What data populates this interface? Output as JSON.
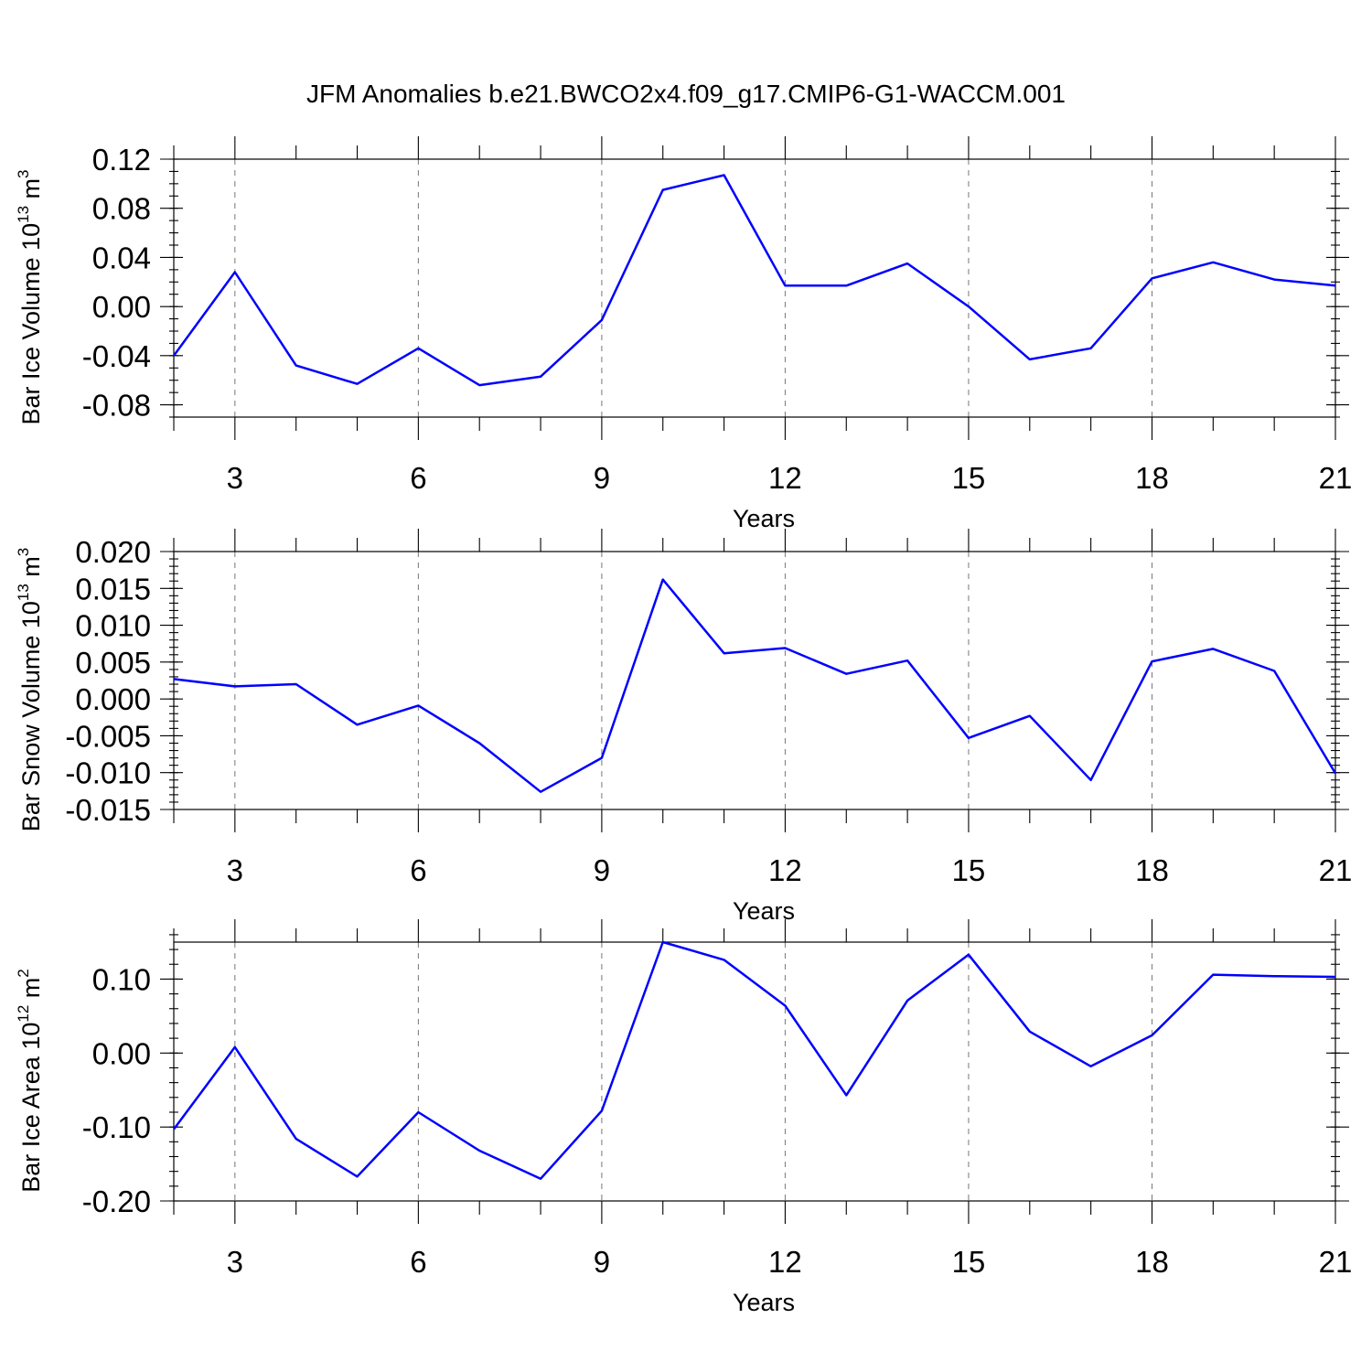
{
  "title": "JFM Anomalies b.e21.BWCO2x4.f09_g17.CMIP6-G1-WACCM.001",
  "colors": {
    "line": "#0000ff",
    "axes": "#000000",
    "grid": "#777777"
  },
  "chart_data": [
    {
      "type": "line",
      "id": "ice-volume",
      "title": "",
      "xlabel": "Years",
      "ylabel": {
        "main": "Bar Ice Volume 10",
        "sup": "13",
        "unit": " m",
        "unit_sup": "3"
      },
      "xlim": [
        2,
        21
      ],
      "xticks": [
        3,
        6,
        9,
        12,
        15,
        18,
        21
      ],
      "xtick_labels": [
        "3",
        "6",
        "9",
        "12",
        "15",
        "18",
        "21"
      ],
      "ylim": [
        -0.09,
        0.12
      ],
      "yticks": [
        -0.08,
        -0.04,
        0.0,
        0.04,
        0.08,
        0.12
      ],
      "ytick_labels": [
        "-0.08",
        "-0.04",
        "0.00",
        "0.04",
        "0.08",
        "0.12"
      ],
      "yminor_step": 0.01,
      "grid": "dashed vertical at major x ticks",
      "x": [
        2,
        3,
        4,
        5,
        6,
        7,
        8,
        9,
        10,
        11,
        12,
        13,
        14,
        15,
        16,
        17,
        18,
        19,
        20,
        21
      ],
      "y": [
        -0.04,
        0.028,
        -0.048,
        -0.063,
        -0.034,
        -0.064,
        -0.057,
        -0.011,
        0.095,
        0.107,
        0.017,
        0.017,
        0.035,
        0.0,
        -0.043,
        -0.034,
        0.023,
        0.036,
        0.022,
        0.017
      ]
    },
    {
      "type": "line",
      "id": "snow-volume",
      "title": "",
      "xlabel": "Years",
      "ylabel": {
        "main": "Bar Snow Volume 10",
        "sup": "13",
        "unit": " m",
        "unit_sup": "3"
      },
      "xlim": [
        2,
        21
      ],
      "xticks": [
        3,
        6,
        9,
        12,
        15,
        18,
        21
      ],
      "xtick_labels": [
        "3",
        "6",
        "9",
        "12",
        "15",
        "18",
        "21"
      ],
      "ylim": [
        -0.015,
        0.02
      ],
      "yticks": [
        -0.015,
        -0.01,
        -0.005,
        0.0,
        0.005,
        0.01,
        0.015,
        0.02
      ],
      "ytick_labels": [
        "-0.015",
        "-0.010",
        "-0.005",
        "0.000",
        "0.005",
        "0.010",
        "0.015",
        "0.020"
      ],
      "yminor_step": 0.001,
      "grid": "dashed vertical at major x ticks",
      "x": [
        2,
        3,
        4,
        5,
        6,
        7,
        8,
        9,
        10,
        11,
        12,
        13,
        14,
        15,
        16,
        17,
        18,
        19,
        20,
        21
      ],
      "y": [
        0.0027,
        0.0017,
        0.002,
        -0.0035,
        -0.0009,
        -0.006,
        -0.0126,
        -0.008,
        0.0162,
        0.0062,
        0.0069,
        0.0034,
        0.0052,
        -0.0053,
        -0.0023,
        -0.011,
        0.0051,
        0.0068,
        0.0038,
        -0.0101
      ]
    },
    {
      "type": "line",
      "id": "ice-area",
      "title": "",
      "xlabel": "Years",
      "ylabel": {
        "main": "Bar Ice Area 10",
        "sup": "12",
        "unit": " m",
        "unit_sup": "2"
      },
      "xlim": [
        2,
        21
      ],
      "xticks": [
        3,
        6,
        9,
        12,
        15,
        18,
        21
      ],
      "xtick_labels": [
        "3",
        "6",
        "9",
        "12",
        "15",
        "18",
        "21"
      ],
      "ylim": [
        -0.2,
        0.15
      ],
      "yticks": [
        -0.2,
        -0.1,
        0.0,
        0.1
      ],
      "ytick_labels": [
        "-0.20",
        "-0.10",
        "0.00",
        "0.10"
      ],
      "yminor_step": 0.02,
      "grid": "dashed vertical at major x ticks",
      "x": [
        2,
        3,
        4,
        5,
        6,
        7,
        8,
        9,
        10,
        11,
        12,
        13,
        14,
        15,
        16,
        17,
        18,
        19,
        20,
        21
      ],
      "y": [
        -0.103,
        0.008,
        -0.116,
        -0.167,
        -0.08,
        -0.132,
        -0.17,
        -0.078,
        0.15,
        0.126,
        0.064,
        -0.057,
        0.071,
        0.133,
        0.029,
        -0.018,
        0.024,
        0.106,
        0.104,
        0.103
      ]
    }
  ]
}
